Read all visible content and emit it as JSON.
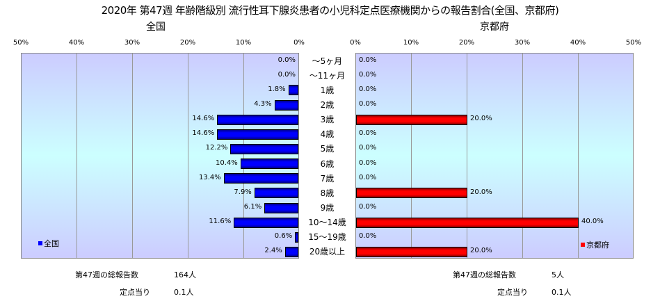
{
  "chart_data": [
    {
      "type": "bar",
      "orientation": "horizontal",
      "direction": "right-to-left",
      "title": "全国",
      "legend": "全国",
      "legend_position": "bottom-left",
      "color": "#0000ff",
      "xlim": [
        0,
        50
      ],
      "ticks": [
        "50%",
        "40%",
        "30%",
        "20%",
        "10%",
        "0%"
      ],
      "categories": [
        "～5ヶ月",
        "～11ヶ月",
        "1歳",
        "2歳",
        "3歳",
        "4歳",
        "5歳",
        "6歳",
        "7歳",
        "8歳",
        "9歳",
        "10～14歳",
        "15～19歳",
        "20歳以上"
      ],
      "values": [
        0.0,
        0.0,
        1.8,
        4.3,
        14.6,
        14.6,
        12.2,
        10.4,
        13.4,
        7.9,
        6.1,
        11.6,
        0.6,
        2.4
      ],
      "labels": [
        "0.0%",
        "0.0%",
        "1.8%",
        "4.3%",
        "14.6%",
        "14.6%",
        "12.2%",
        "10.4%",
        "13.4%",
        "7.9%",
        "6.1%",
        "11.6%",
        "0.6%",
        "2.4%"
      ]
    },
    {
      "type": "bar",
      "orientation": "horizontal",
      "title": "京都府",
      "legend": "京都府",
      "legend_position": "bottom-right",
      "color": "#ff0000",
      "xlim": [
        0,
        50
      ],
      "ticks": [
        "0%",
        "10%",
        "20%",
        "30%",
        "40%",
        "50%"
      ],
      "values": [
        0,
        0,
        0,
        0,
        20,
        0,
        0,
        0,
        0,
        20,
        0,
        40,
        0,
        20
      ],
      "labels": [
        "0.0%",
        "0.0%",
        "0.0%",
        "0.0%",
        "20.0%",
        "0.0%",
        "0.0%",
        "0.0%",
        "0.0%",
        "20.0%",
        "0.0%",
        "40.0%",
        "0.0%",
        "20.0%"
      ]
    }
  ],
  "title": "2020年 第47週 年齢階級別 流行性耳下腺炎患者の小児科定点医療機関からの報告割合(全国、京都府)",
  "footer": {
    "national": {
      "total_label": "第47週の総報告数",
      "total": "164人",
      "per_label": "定点当り",
      "per": "0.1人"
    },
    "kyoto": {
      "total_label": "第47週の総報告数",
      "total": "5人",
      "per_label": "定点当り",
      "per": "0.1人"
    }
  }
}
